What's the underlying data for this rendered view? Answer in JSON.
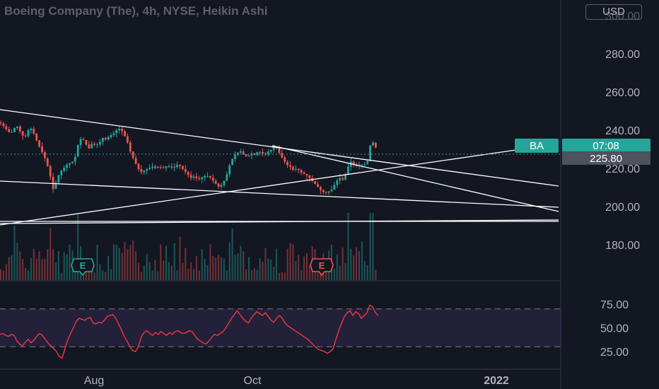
{
  "header": {
    "title": "Boeing Company (The), 4h, NYSE, Heikin Ashi",
    "currency": "USD"
  },
  "colors": {
    "background": "#131722",
    "bull": "#26a69a",
    "bear": "#ef5350",
    "rsi_line": "#f23645",
    "rsi_band": "#7e57c2",
    "trendline": "#ffffff",
    "axis_text": "#b2b5be"
  },
  "price_labels": {
    "symbol": "BA",
    "countdown": "07:08",
    "last_price": "225.80"
  },
  "earnings_markers": [
    {
      "label": "E",
      "time": "2021-07-28",
      "color": "#26a69a"
    },
    {
      "label": "E",
      "time": "2021-10-27",
      "color": "#ef5350"
    }
  ],
  "chart_data": [
    {
      "type": "candlestick",
      "series_type": "Heikin Ashi",
      "interval": "4h",
      "y_ticks": [
        "300.00",
        "280.00",
        "260.00",
        "240.00",
        "220.00",
        "200.00",
        "180.00"
      ],
      "ylim": [
        178,
        302
      ],
      "x_ticks": [
        "Aug",
        "Oct",
        "2022"
      ],
      "last_price": 225.8,
      "ohlc_path": [
        [
          0,
          244
        ],
        [
          5,
          242
        ],
        [
          10,
          240
        ],
        [
          15,
          238
        ],
        [
          20,
          241
        ],
        [
          25,
          242
        ],
        [
          30,
          238
        ],
        [
          35,
          236
        ],
        [
          40,
          240
        ],
        [
          45,
          241
        ],
        [
          50,
          236
        ],
        [
          55,
          232
        ],
        [
          60,
          228
        ],
        [
          65,
          224
        ],
        [
          70,
          218
        ],
        [
          73,
          212
        ],
        [
          76,
          208
        ],
        [
          80,
          214
        ],
        [
          85,
          218
        ],
        [
          90,
          220
        ],
        [
          95,
          222
        ],
        [
          100,
          223
        ],
        [
          105,
          224
        ],
        [
          110,
          232
        ],
        [
          115,
          236
        ],
        [
          120,
          234
        ],
        [
          125,
          230
        ],
        [
          130,
          233
        ],
        [
          135,
          232
        ],
        [
          140,
          233
        ],
        [
          145,
          236
        ],
        [
          150,
          235
        ],
        [
          155,
          237
        ],
        [
          160,
          238
        ],
        [
          165,
          240
        ],
        [
          170,
          241
        ],
        [
          175,
          238
        ],
        [
          180,
          234
        ],
        [
          185,
          228
        ],
        [
          190,
          224
        ],
        [
          195,
          220
        ],
        [
          200,
          218
        ],
        [
          205,
          219
        ],
        [
          210,
          220
        ],
        [
          215,
          221
        ],
        [
          220,
          220
        ],
        [
          225,
          221
        ],
        [
          230,
          220
        ],
        [
          235,
          221
        ],
        [
          240,
          221
        ],
        [
          245,
          220
        ],
        [
          250,
          222
        ],
        [
          255,
          221
        ],
        [
          260,
          219
        ],
        [
          265,
          217
        ],
        [
          270,
          215
        ],
        [
          275,
          216
        ],
        [
          280,
          214
        ],
        [
          285,
          215
        ],
        [
          290,
          216
        ],
        [
          295,
          216
        ],
        [
          300,
          214
        ],
        [
          305,
          212
        ],
        [
          310,
          210
        ],
        [
          315,
          212
        ],
        [
          320,
          216
        ],
        [
          325,
          222
        ],
        [
          330,
          226
        ],
        [
          335,
          228
        ],
        [
          340,
          229
        ],
        [
          345,
          227
        ],
        [
          350,
          226
        ],
        [
          355,
          228
        ],
        [
          360,
          227
        ],
        [
          365,
          229
        ],
        [
          370,
          228
        ],
        [
          375,
          227
        ],
        [
          380,
          229
        ],
        [
          385,
          230
        ],
        [
          390,
          232
        ],
        [
          395,
          228
        ],
        [
          400,
          225
        ],
        [
          405,
          222
        ],
        [
          410,
          221
        ],
        [
          415,
          219
        ],
        [
          420,
          220
        ],
        [
          425,
          218
        ],
        [
          430,
          217
        ],
        [
          435,
          216
        ],
        [
          440,
          214
        ],
        [
          445,
          212
        ],
        [
          450,
          210
        ],
        [
          455,
          208
        ],
        [
          460,
          207
        ],
        [
          465,
          208
        ],
        [
          470,
          209
        ],
        [
          475,
          213
        ],
        [
          480,
          215
        ],
        [
          485,
          214
        ],
        [
          490,
          218
        ],
        [
          495,
          224
        ],
        [
          500,
          222
        ],
        [
          505,
          221
        ],
        [
          510,
          222
        ],
        [
          515,
          222
        ],
        [
          520,
          224
        ],
        [
          525,
          235
        ],
        [
          530,
          232
        ],
        [
          535,
          228
        ]
      ],
      "volume_note": "volume histogram beneath price, colored by candle direction",
      "trendlines": [
        {
          "from": [
            0,
            157
          ],
          "to": [
            790,
            263
          ]
        },
        {
          "from": [
            0,
            256
          ],
          "to": [
            790,
            293
          ]
        },
        {
          "from": [
            0,
            316
          ],
          "to": [
            790,
            311
          ]
        },
        {
          "from": [
            385,
            206
          ],
          "to": [
            790,
            299
          ]
        },
        {
          "from": [
            0,
            318
          ],
          "to": [
            730,
            212
          ]
        }
      ]
    },
    {
      "type": "line",
      "name": "",
      "y_ticks": [
        "75.00",
        "50.00",
        "25.00"
      ],
      "ylim": [
        14,
        86
      ],
      "band": [
        30,
        70
      ],
      "values": [
        43,
        44,
        42,
        41,
        43,
        42,
        36,
        33,
        31,
        35,
        38,
        34,
        37,
        41,
        44,
        42,
        38,
        34,
        31,
        28,
        25,
        20,
        18,
        28,
        37,
        44,
        50,
        57,
        60,
        59,
        58,
        60,
        61,
        55,
        54,
        56,
        55,
        58,
        62,
        63,
        64,
        60,
        54,
        48,
        41,
        36,
        30,
        26,
        25,
        30,
        40,
        45,
        47,
        44,
        42,
        45,
        43,
        46,
        44,
        42,
        45,
        43,
        46,
        47,
        45,
        44,
        45,
        47,
        46,
        42,
        38,
        36,
        34,
        33,
        36,
        40,
        43,
        42,
        44,
        46,
        50,
        55,
        60,
        64,
        68,
        64,
        60,
        57,
        55,
        60,
        64,
        67,
        65,
        63,
        66,
        62,
        58,
        56,
        60,
        63,
        60,
        55,
        52,
        50,
        48,
        46,
        44,
        42,
        40,
        38,
        35,
        32,
        29,
        27,
        26,
        25,
        23,
        25,
        28,
        38,
        47,
        55,
        62,
        66,
        68,
        63,
        67,
        65,
        60,
        63,
        66,
        74,
        72,
        66,
        63
      ]
    }
  ]
}
